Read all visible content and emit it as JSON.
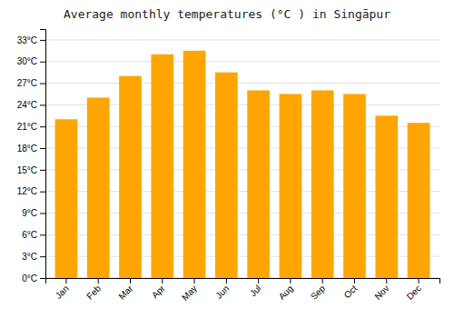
{
  "chart_data": {
    "type": "bar",
    "title": "Average monthly temperatures (°C ) in Singāpur",
    "categories": [
      "Jan",
      "Feb",
      "Mar",
      "Apr",
      "May",
      "Jun",
      "Jul",
      "Aug",
      "Sep",
      "Oct",
      "Nov",
      "Dec"
    ],
    "values": [
      22.0,
      25.0,
      28.0,
      31.0,
      31.5,
      28.5,
      26.0,
      25.5,
      26.0,
      25.5,
      22.5,
      21.5
    ],
    "color": "#FFA500",
    "ylim": [
      0,
      34.5
    ],
    "yticks": [
      {
        "value": 0,
        "label": "0°C"
      },
      {
        "value": 3,
        "label": "3°C"
      },
      {
        "value": 6,
        "label": "6°C"
      },
      {
        "value": 9,
        "label": "9°C"
      },
      {
        "value": 12,
        "label": "12°C"
      },
      {
        "value": 15,
        "label": "15°C"
      },
      {
        "value": 18,
        "label": "18°C"
      },
      {
        "value": 21,
        "label": "21°C"
      },
      {
        "value": 24,
        "label": "24°C"
      },
      {
        "value": 27,
        "label": "27°C"
      },
      {
        "value": 30,
        "label": "30°C"
      },
      {
        "value": 33,
        "label": "33°C"
      }
    ],
    "grid": true
  }
}
